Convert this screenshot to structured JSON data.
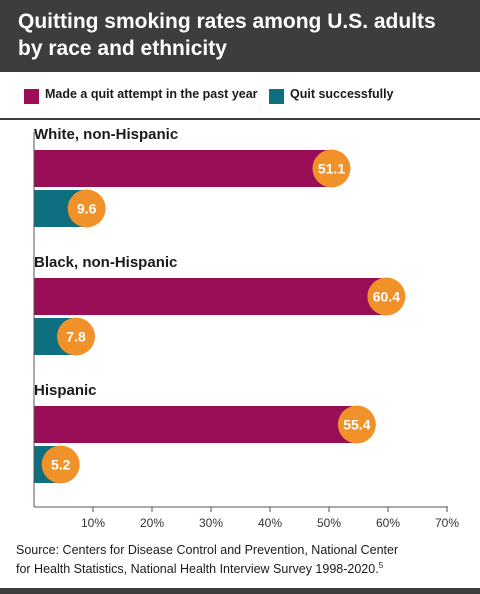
{
  "header": {
    "title_line1": "Quitting smoking rates among U.S. adults",
    "title_line2": "by race and ethnicity"
  },
  "colors": {
    "attempt": "#990e56",
    "quit": "#0d6f7f",
    "badge": "#f0912a",
    "header_bg": "#3d3d3d"
  },
  "chart_data": {
    "type": "bar",
    "orientation": "horizontal",
    "title": "Quitting smoking rates among U.S. adults by race and ethnicity",
    "categories": [
      "White, non-Hispanic",
      "Black, non-Hispanic",
      "Hispanic"
    ],
    "series": [
      {
        "name": "Made a quit attempt in the past year",
        "values": [
          51.1,
          60.4,
          55.4
        ]
      },
      {
        "name": "Quit successfully",
        "values": [
          9.6,
          7.8,
          5.2
        ]
      }
    ],
    "xlim": [
      0,
      70
    ],
    "xticks": [
      10,
      20,
      30,
      40,
      50,
      60,
      70
    ],
    "tick_suffix": "%",
    "legend": "top",
    "data_labels": true,
    "grid": false
  },
  "source": {
    "line1": "Source: Centers for Disease Control and Prevention, National Center",
    "line2": "for Health Statistics, National Health Interview Survey 1998-2020.",
    "footnote": "5"
  }
}
